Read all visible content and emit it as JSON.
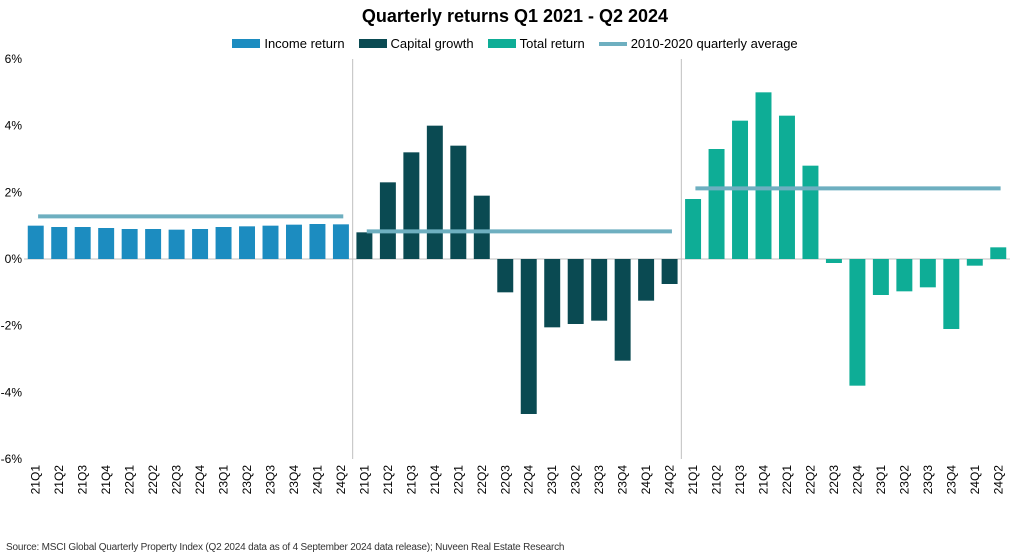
{
  "chart_data": {
    "type": "bar",
    "title": "Quarterly returns Q1 2021 - Q2 2024",
    "legend_position": "top",
    "grid": false,
    "ylim": [
      -6,
      6
    ],
    "yticks": [
      -6,
      -4,
      -2,
      0,
      2,
      4,
      6
    ],
    "ytick_labels": [
      "-6%",
      "-4%",
      "-2%",
      "0%",
      "2%",
      "4%",
      "6%"
    ],
    "categories": [
      "21Q1",
      "21Q2",
      "21Q3",
      "21Q4",
      "22Q1",
      "22Q2",
      "22Q3",
      "22Q4",
      "23Q1",
      "23Q2",
      "23Q3",
      "23Q4",
      "24Q1",
      "24Q2"
    ],
    "series": [
      {
        "name": "Income return",
        "color": "#1C8CC0",
        "values": [
          1.0,
          0.96,
          0.96,
          0.93,
          0.9,
          0.9,
          0.88,
          0.9,
          0.96,
          0.98,
          1.0,
          1.03,
          1.05,
          1.04
        ],
        "average": 1.28
      },
      {
        "name": "Capital growth",
        "color": "#0A4A52",
        "values": [
          0.8,
          2.3,
          3.2,
          4.0,
          3.4,
          1.9,
          -1.0,
          -4.65,
          -2.05,
          -1.95,
          -1.85,
          -3.05,
          -1.25,
          -0.75
        ],
        "average": 0.83
      },
      {
        "name": "Total return",
        "color": "#0EAD96",
        "values": [
          1.8,
          3.3,
          4.15,
          5.0,
          4.3,
          2.8,
          -0.12,
          -3.8,
          -1.08,
          -0.97,
          -0.85,
          -2.1,
          -0.2,
          0.35
        ],
        "average": 2.12
      }
    ],
    "average_line": {
      "name": "2010-2020 quarterly average",
      "color": "#6EAFC0"
    }
  },
  "source": "Source: MSCI Global Quarterly Property Index (Q2 2024 data as of 4 September 2024 data release); Nuveen Real Estate Research"
}
